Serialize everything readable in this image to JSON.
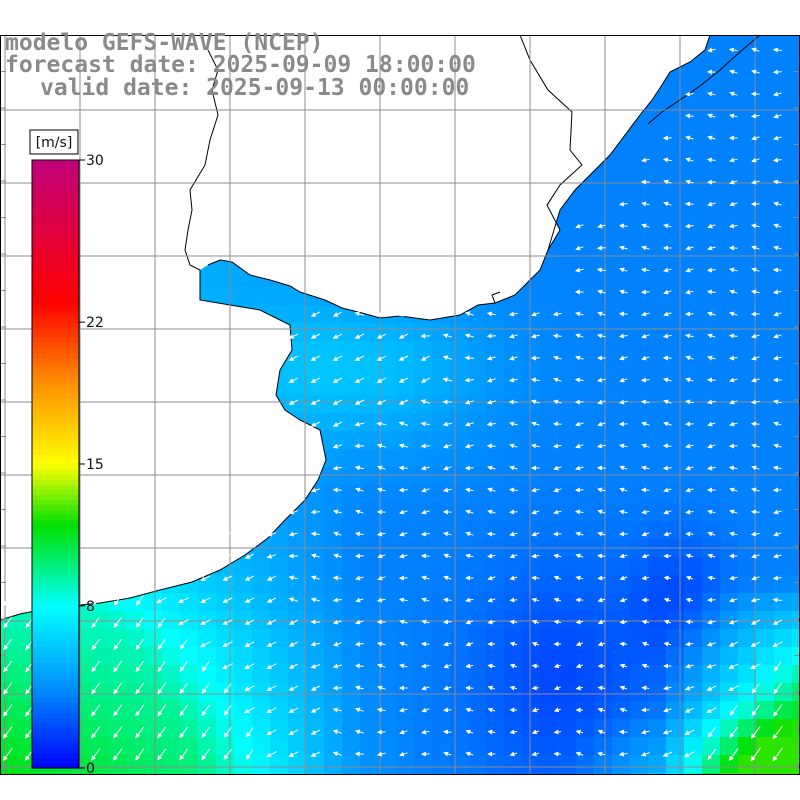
{
  "header": {
    "model_line": "modelo GEFS-WAVE (NCEP)",
    "forecast_line": "forecast date: 2025-09-09 18:00:00",
    "valid_line": "valid date: 2025-09-13 00:00:00"
  },
  "colorbar": {
    "unit": "[m/s]",
    "tick_labels": [
      "30",
      "22",
      "15",
      "8",
      "0"
    ],
    "tick_values": [
      30,
      22,
      15,
      8,
      0
    ],
    "min": 0,
    "max": 30,
    "stops": [
      {
        "v": 0,
        "c": "#0000ff"
      },
      {
        "v": 4,
        "c": "#0090ff"
      },
      {
        "v": 8,
        "c": "#00ffff"
      },
      {
        "v": 12,
        "c": "#00e000"
      },
      {
        "v": 15,
        "c": "#ffff00"
      },
      {
        "v": 19,
        "c": "#ff9000"
      },
      {
        "v": 23,
        "c": "#ff0000"
      },
      {
        "v": 30,
        "c": "#c0007a"
      }
    ]
  },
  "map": {
    "variable": "wind speed",
    "land_color": "#ffffff",
    "coast_color": "#000000",
    "grid_color": "#888888",
    "arrow_color": "#ffffff",
    "wind_regions": [
      {
        "name": "south-west green",
        "speed": 11
      },
      {
        "name": "south-east green",
        "speed": 10
      },
      {
        "name": "coastal cyan",
        "speed": 8
      },
      {
        "name": "central blue",
        "speed": 4
      },
      {
        "name": "deep blue core",
        "speed": 2
      }
    ]
  }
}
